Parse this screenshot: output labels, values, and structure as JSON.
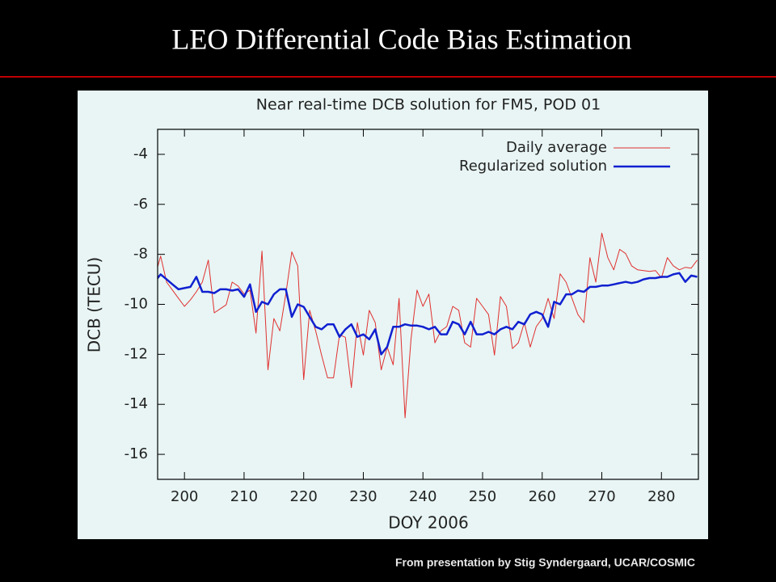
{
  "header": {
    "title": "LEO Differential Code Bias Estimation"
  },
  "chart_data": {
    "type": "line",
    "title": "Near real-time DCB solution for FM5, POD 01",
    "x_label": "DOY 2006",
    "y_label": "DCB (TECU)",
    "x": [
      195,
      196,
      197,
      198,
      199,
      200,
      201,
      202,
      203,
      204,
      205,
      206,
      207,
      208,
      209,
      210,
      211,
      212,
      213,
      214,
      215,
      216,
      217,
      218,
      219,
      220,
      221,
      222,
      223,
      224,
      225,
      226,
      227,
      228,
      229,
      230,
      231,
      232,
      233,
      234,
      235,
      236,
      237,
      238,
      239,
      240,
      241,
      242,
      243,
      244,
      245,
      246,
      247,
      248,
      249,
      250,
      251,
      252,
      253,
      254,
      255,
      256,
      257,
      258,
      259,
      260,
      261,
      262,
      263,
      264,
      265,
      266,
      267,
      268,
      269,
      270,
      271,
      272,
      273,
      274,
      275,
      276,
      277,
      278,
      279,
      280,
      281,
      282,
      283,
      284,
      285,
      286
    ],
    "series": [
      {
        "name": "Daily average",
        "color": "#e03030",
        "width": 1,
        "values": [
          -8.94,
          -8.07,
          -9.11,
          -9.43,
          -9.76,
          -10.08,
          -9.82,
          -9.5,
          -9.11,
          -8.23,
          -10.34,
          -10.18,
          -10.02,
          -9.11,
          -9.27,
          -9.59,
          -9.43,
          -11.15,
          -7.87,
          -12.62,
          -10.57,
          -11.06,
          -9.59,
          -7.9,
          -8.46,
          -13.01,
          -10.24,
          -11.06,
          -12.03,
          -12.94,
          -12.94,
          -11.22,
          -11.32,
          -13.33,
          -10.73,
          -12.03,
          -10.24,
          -10.73,
          -12.62,
          -11.71,
          -12.42,
          -9.76,
          -14.54,
          -11.38,
          -9.43,
          -10.08,
          -9.59,
          -11.54,
          -11.06,
          -10.89,
          -10.08,
          -10.24,
          -11.54,
          -11.71,
          -9.76,
          -10.08,
          -10.41,
          -12.03,
          -9.69,
          -10.08,
          -11.77,
          -11.54,
          -10.73,
          -11.71,
          -10.89,
          -10.57,
          -9.76,
          -10.57,
          -8.78,
          -9.11,
          -9.76,
          -10.41,
          -10.73,
          -8.13,
          -9.11,
          -7.15,
          -8.13,
          -8.62,
          -7.8,
          -7.97,
          -8.46,
          -8.62,
          -8.65,
          -8.68,
          -8.65,
          -8.94,
          -8.13,
          -8.46,
          -8.62,
          -8.52,
          -8.55,
          -8.23
        ]
      },
      {
        "name": "Regularized solution",
        "color": "#1020d0",
        "width": 2.5,
        "values": [
          -9.1,
          -8.8,
          -9.0,
          -9.2,
          -9.4,
          -9.35,
          -9.3,
          -8.9,
          -9.5,
          -9.5,
          -9.55,
          -9.4,
          -9.4,
          -9.45,
          -9.4,
          -9.7,
          -9.2,
          -10.3,
          -9.9,
          -10.0,
          -9.6,
          -9.4,
          -9.4,
          -10.5,
          -10.0,
          -10.1,
          -10.5,
          -10.9,
          -11.0,
          -10.8,
          -10.8,
          -11.3,
          -11.0,
          -10.8,
          -11.3,
          -11.2,
          -11.4,
          -11.0,
          -12.0,
          -11.7,
          -10.9,
          -10.9,
          -10.8,
          -10.85,
          -10.85,
          -10.9,
          -11.0,
          -10.9,
          -11.2,
          -11.2,
          -10.7,
          -10.8,
          -11.2,
          -10.7,
          -11.2,
          -11.2,
          -11.1,
          -11.2,
          -11.0,
          -10.9,
          -11.0,
          -10.7,
          -10.8,
          -10.4,
          -10.3,
          -10.4,
          -10.9,
          -9.9,
          -10.0,
          -9.6,
          -9.6,
          -9.45,
          -9.5,
          -9.3,
          -9.3,
          -9.25,
          -9.25,
          -9.2,
          -9.15,
          -9.1,
          -9.15,
          -9.1,
          -9.0,
          -8.95,
          -8.95,
          -8.9,
          -8.9,
          -8.8,
          -8.75,
          -9.1,
          -8.85,
          -8.9
        ]
      }
    ],
    "xlim": [
      195.5,
      286.2
    ],
    "ylim": [
      -17,
      -3
    ],
    "xticks": [
      200,
      210,
      220,
      230,
      240,
      250,
      260,
      270,
      280
    ],
    "yticks": [
      -4,
      -6,
      -8,
      -10,
      -12,
      -14,
      -16
    ],
    "grid": false,
    "legend": "top-right"
  },
  "footer": {
    "credit": "From presentation by Stig Syndergaard, UCAR/COSMIC"
  }
}
